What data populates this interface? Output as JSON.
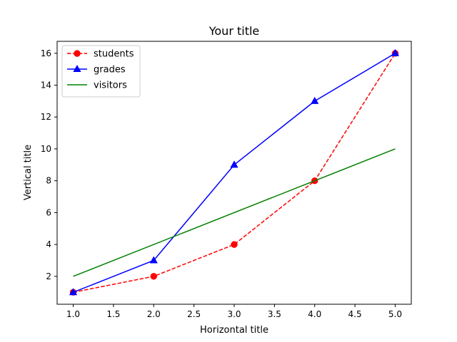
{
  "chart_data": {
    "type": "line",
    "title": "Your title",
    "xlabel": "Horizontal title",
    "ylabel": "Vertical title",
    "xlim": [
      0.8,
      5.2
    ],
    "ylim": [
      0.25,
      16.75
    ],
    "xticks": [
      "1.0",
      "1.5",
      "2.0",
      "2.5",
      "3.0",
      "3.5",
      "4.0",
      "4.5",
      "5.0"
    ],
    "yticks": [
      "2",
      "4",
      "6",
      "8",
      "10",
      "12",
      "14",
      "16"
    ],
    "grid": false,
    "legend": "top-left",
    "series": [
      {
        "name": "students",
        "x": [
          1,
          2,
          3,
          4,
          5
        ],
        "y": [
          1,
          2,
          4,
          8,
          16
        ],
        "color": "#ff0000",
        "line": "dashed",
        "marker": "circle"
      },
      {
        "name": "grades",
        "x": [
          1,
          2,
          3,
          4,
          5
        ],
        "y": [
          1,
          3,
          9,
          13,
          16
        ],
        "color": "#0000ff",
        "line": "solid",
        "marker": "triangle"
      },
      {
        "name": "visitors",
        "x": [
          1,
          5
        ],
        "y": [
          2,
          10
        ],
        "color": "#008000",
        "line": "solid",
        "marker": "none"
      }
    ]
  }
}
